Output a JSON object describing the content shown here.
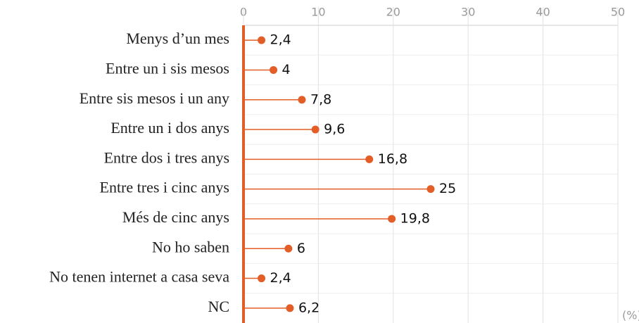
{
  "chart_data": {
    "type": "lollipop",
    "categories": [
      "Menys d’un mes",
      "Entre un i sis mesos",
      "Entre sis mesos i un any",
      "Entre un i dos anys",
      "Entre dos i tres anys",
      "Entre tres i cinc anys",
      "Més de cinc anys",
      "No ho saben",
      "No tenen internet a casa seva",
      "NC"
    ],
    "values": [
      2.4,
      4,
      7.8,
      9.6,
      16.8,
      25,
      19.8,
      6,
      2.4,
      6.2
    ],
    "value_labels": [
      "2,4",
      "4",
      "7,8",
      "9,6",
      "16,8",
      "25",
      "19,8",
      "6",
      "2,4",
      "6,2"
    ],
    "color": "#e35d27",
    "xlim": [
      0,
      50
    ],
    "xticks": [
      0,
      10,
      20,
      30,
      40,
      50
    ],
    "grid": true,
    "unit_label": "(%)"
  }
}
